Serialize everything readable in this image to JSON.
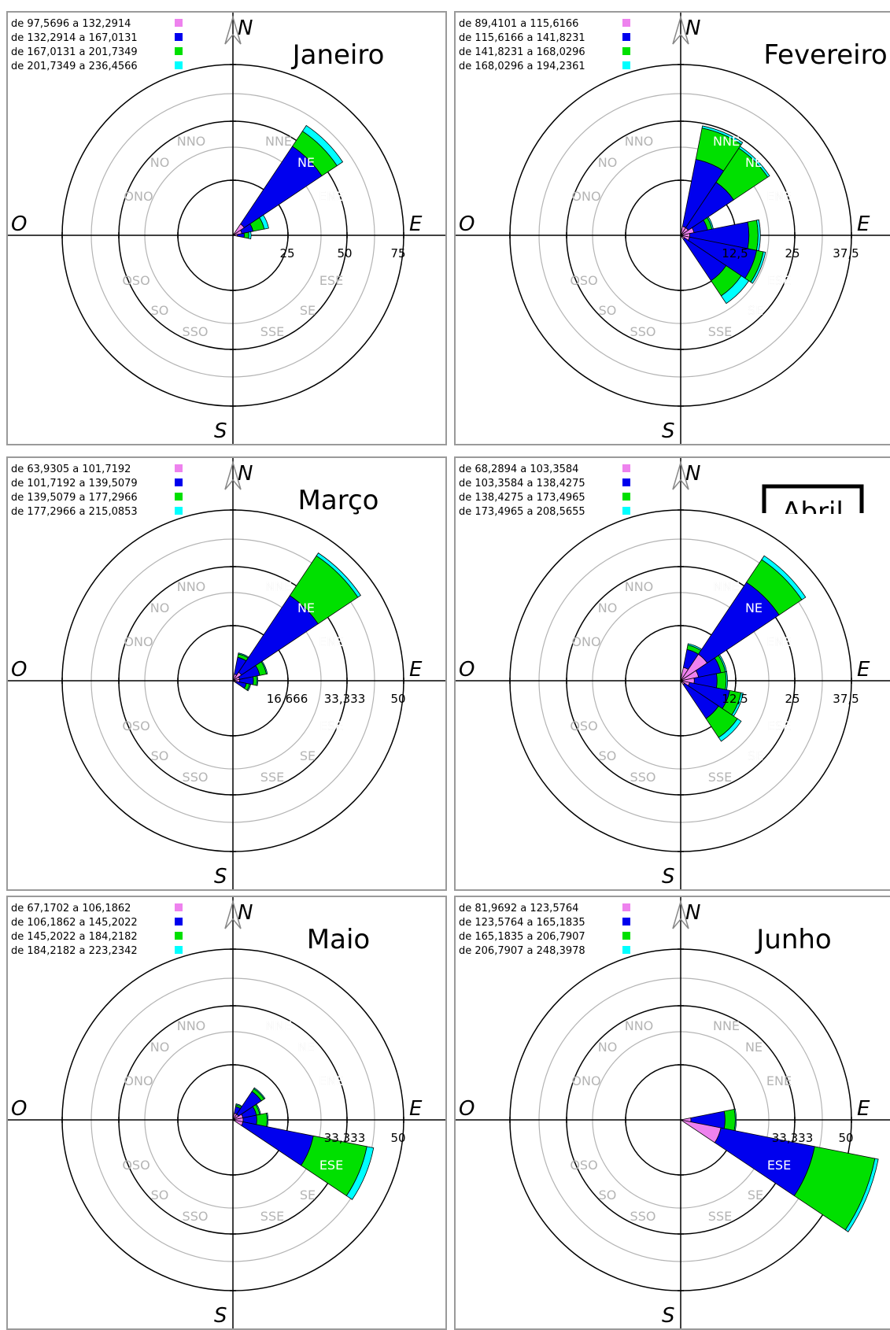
{
  "colors": {
    "bin1": "#ee82ee",
    "bin2": "#0000ee",
    "bin3": "#00e000",
    "bin4": "#00ffff",
    "ring_dark": "#000000",
    "ring_light": "#b4b4b4",
    "label_gray": "#b4b4b4"
  },
  "compass": {
    "north": "N",
    "south": "S",
    "east": "E",
    "west": "O"
  },
  "direction_labels": [
    "NNO",
    "NO",
    "ONO",
    "NNE",
    "NE",
    "ENE",
    "OSO",
    "SO",
    "SSO",
    "ESE",
    "SE",
    "SSE"
  ],
  "chart_data": [
    {
      "type": "wind_rose",
      "title": "Janeiro",
      "legend": [
        "de 97,5696 a 132,2914",
        "de 132,2914 a 167,0131",
        "de 167,0131 a 201,7349",
        "de 201,7349 a 236,4566"
      ],
      "ring_labels": [
        "25",
        "50",
        "75"
      ],
      "rmax": 75,
      "sectors": [
        {
          "direction": "NE",
          "angle": 45,
          "cumulative": [
            6,
            47,
            55,
            58
          ]
        },
        {
          "direction": "ENE",
          "angle": 67.5,
          "cumulative": [
            4,
            9,
            14,
            16
          ]
        },
        {
          "direction": "E",
          "angle": 90,
          "cumulative": [
            2,
            5,
            7,
            8
          ]
        }
      ]
    },
    {
      "type": "wind_rose",
      "title": "Fevereiro",
      "legend": [
        "de 89,4101 a 115,6166",
        "de 115,6166 a 141,8231",
        "de 141,8231 a 168,0296",
        "de 168,0296 a 194,2361"
      ],
      "ring_labels": [
        "12,5",
        "25",
        "37,5"
      ],
      "rmax": 37.5,
      "sectors": [
        {
          "direction": "NNE",
          "angle": 22.5,
          "cumulative": [
            2,
            17,
            24,
            24.5
          ]
        },
        {
          "direction": "NE",
          "angle": 45,
          "cumulative": [
            2,
            14,
            23,
            23.5
          ]
        },
        {
          "direction": "ENE",
          "angle": 67.5,
          "cumulative": [
            3,
            6,
            7,
            7.3
          ]
        },
        {
          "direction": "E",
          "angle": 90,
          "cumulative": [
            2,
            15,
            17,
            17.5
          ]
        },
        {
          "direction": "ESE",
          "angle": 112.5,
          "cumulative": [
            2,
            17,
            18.5,
            19
          ]
        },
        {
          "direction": "SE",
          "angle": 135,
          "cumulative": [
            1,
            12,
            16,
            18
          ]
        }
      ]
    },
    {
      "type": "wind_rose",
      "title": "Março",
      "legend": [
        "de 63,9305 a 101,7192",
        "de 101,7192 a 139,5079",
        "de 139,5079 a 177,2966",
        "de 177,2966 a 215,0853"
      ],
      "ring_labels": [
        "16,666",
        "33,333",
        "50"
      ],
      "rmax": 50,
      "sectors": [
        {
          "direction": "NNE",
          "angle": 22.5,
          "cumulative": [
            2,
            7,
            8,
            8.3
          ]
        },
        {
          "direction": "NE",
          "angle": 45,
          "cumulative": [
            3,
            30,
            44,
            45
          ]
        },
        {
          "direction": "ENE",
          "angle": 67.5,
          "cumulative": [
            2,
            8,
            10,
            10.3
          ]
        },
        {
          "direction": "E",
          "angle": 90,
          "cumulative": [
            2,
            6,
            7,
            7.3
          ]
        },
        {
          "direction": "ESE",
          "angle": 112.5,
          "cumulative": [
            1,
            4,
            5,
            5.3
          ]
        }
      ]
    },
    {
      "type": "wind_rose",
      "title": "Abril",
      "legend": [
        "de 68,2894 a 103,3584",
        "de 103,3584 a 138,4275",
        "de 138,4275 a 173,4965",
        "de 173,4965 a 208,5655"
      ],
      "ring_labels": [
        "12,5",
        "25",
        "37,5"
      ],
      "rmax": 37.5,
      "sectors": [
        {
          "direction": "NNE",
          "angle": 22.5,
          "cumulative": [
            3,
            7,
            8,
            8.3
          ]
        },
        {
          "direction": "NE",
          "angle": 45,
          "cumulative": [
            7,
            26,
            32,
            33
          ]
        },
        {
          "direction": "ENE",
          "angle": 67.5,
          "cumulative": [
            4,
            9,
            10,
            10.3
          ]
        },
        {
          "direction": "E",
          "angle": 90,
          "cumulative": [
            3,
            8,
            10,
            10.3
          ]
        },
        {
          "direction": "ESE",
          "angle": 112.5,
          "cumulative": [
            2,
            11,
            13.5,
            14
          ]
        },
        {
          "direction": "SE",
          "angle": 135,
          "cumulative": [
            1,
            10,
            15,
            16
          ]
        }
      ]
    },
    {
      "type": "wind_rose",
      "title": "Maio",
      "legend": [
        "de 67,1702 a 106,1862",
        "de 106,1862 a 145,2022",
        "de 145,2022 a 184,2182",
        "de 184,2182 a 223,2342"
      ],
      "ring_labels": [
        "33,333",
        "50"
      ],
      "rmax": 50,
      "sectors": [
        {
          "direction": "NNE",
          "angle": 22.5,
          "cumulative": [
            2,
            4,
            4.5,
            4.8
          ]
        },
        {
          "direction": "NE",
          "angle": 45,
          "cumulative": [
            2,
            10,
            11,
            11.3
          ]
        },
        {
          "direction": "ENE",
          "angle": 67.5,
          "cumulative": [
            3,
            7,
            8,
            8.3
          ]
        },
        {
          "direction": "E",
          "angle": 90,
          "cumulative": [
            3,
            7,
            10,
            10.3
          ]
        },
        {
          "direction": "ESE",
          "angle": 112.5,
          "cumulative": [
            3,
            24,
            40,
            42
          ]
        }
      ]
    },
    {
      "type": "wind_rose",
      "title": "Junho",
      "legend": [
        "de 81,9692 a 123,5764",
        "de 123,5764 a 165,1835",
        "de 165,1835 a 206,7907",
        "de 206,7907 a 248,3978"
      ],
      "ring_labels": [
        "33,333",
        "50"
      ],
      "rmax": 50,
      "sectors": [
        {
          "direction": "E",
          "angle": 90,
          "cumulative": [
            3,
            13,
            16,
            16.3
          ]
        },
        {
          "direction": "ESE",
          "angle": 112.5,
          "cumulative": [
            12,
            40,
            58,
            59
          ]
        }
      ]
    }
  ]
}
